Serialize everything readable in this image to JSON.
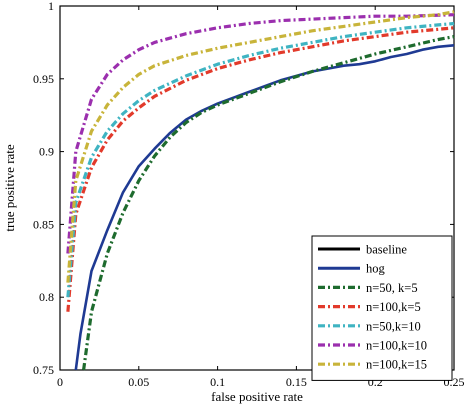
{
  "chart_data": {
    "type": "line",
    "title": "",
    "xlabel": "false positive rate",
    "ylabel": "true positive rate",
    "xlim": [
      0,
      0.25
    ],
    "ylim": [
      0.75,
      1
    ],
    "xticks": [
      0,
      0.05,
      0.1,
      0.15,
      0.2,
      0.25
    ],
    "xtick_labels": [
      "0",
      "0.05",
      "0.1",
      "0.15",
      "0.2",
      "0.25"
    ],
    "yticks": [
      0.75,
      0.8,
      0.85,
      0.9,
      0.95,
      1
    ],
    "ytick_labels": [
      "0.75",
      "0.8",
      "0.85",
      "0.9",
      "0.95",
      "1"
    ],
    "grid": false,
    "legend_position": "bottom-right",
    "series": [
      {
        "name": "baseline",
        "color": "#000000",
        "style": "solid",
        "x": [],
        "y": []
      },
      {
        "name": "hog",
        "color": "#1f3a93",
        "style": "solid",
        "x": [
          0.01,
          0.013,
          0.02,
          0.03,
          0.04,
          0.05,
          0.06,
          0.07,
          0.08,
          0.09,
          0.1,
          0.11,
          0.12,
          0.13,
          0.14,
          0.15,
          0.16,
          0.17,
          0.18,
          0.19,
          0.2,
          0.21,
          0.22,
          0.23,
          0.24,
          0.25
        ],
        "y": [
          0.75,
          0.775,
          0.818,
          0.846,
          0.872,
          0.89,
          0.902,
          0.913,
          0.922,
          0.928,
          0.933,
          0.937,
          0.941,
          0.945,
          0.949,
          0.952,
          0.955,
          0.957,
          0.959,
          0.96,
          0.962,
          0.965,
          0.967,
          0.97,
          0.972,
          0.973
        ]
      },
      {
        "name": "n=50, k=5",
        "color": "#1e6b2e",
        "style": "dashdot",
        "x": [
          0.015,
          0.02,
          0.03,
          0.04,
          0.05,
          0.06,
          0.07,
          0.08,
          0.09,
          0.1,
          0.12,
          0.14,
          0.16,
          0.18,
          0.2,
          0.22,
          0.24,
          0.25
        ],
        "y": [
          0.75,
          0.79,
          0.83,
          0.858,
          0.88,
          0.897,
          0.91,
          0.92,
          0.927,
          0.932,
          0.94,
          0.948,
          0.955,
          0.961,
          0.967,
          0.972,
          0.977,
          0.979
        ]
      },
      {
        "name": "n=100,k=5",
        "color": "#e23a2b",
        "style": "dashdot",
        "x": [
          0.005,
          0.01,
          0.02,
          0.03,
          0.04,
          0.05,
          0.06,
          0.08,
          0.1,
          0.12,
          0.14,
          0.16,
          0.18,
          0.2,
          0.22,
          0.24,
          0.25
        ],
        "y": [
          0.79,
          0.857,
          0.889,
          0.908,
          0.921,
          0.93,
          0.938,
          0.949,
          0.957,
          0.963,
          0.968,
          0.972,
          0.976,
          0.979,
          0.982,
          0.984,
          0.985
        ]
      },
      {
        "name": "n=50,k=10",
        "color": "#3fb4c2",
        "style": "dashdot",
        "x": [
          0.005,
          0.01,
          0.02,
          0.03,
          0.04,
          0.05,
          0.06,
          0.08,
          0.1,
          0.12,
          0.14,
          0.16,
          0.18,
          0.2,
          0.22,
          0.24,
          0.25
        ],
        "y": [
          0.8,
          0.865,
          0.896,
          0.914,
          0.926,
          0.935,
          0.942,
          0.952,
          0.96,
          0.966,
          0.971,
          0.975,
          0.979,
          0.982,
          0.985,
          0.987,
          0.988
        ]
      },
      {
        "name": "n=100,k=10",
        "color": "#9b2fae",
        "style": "dashdot",
        "x": [
          0.005,
          0.01,
          0.02,
          0.03,
          0.04,
          0.05,
          0.06,
          0.08,
          0.1,
          0.12,
          0.14,
          0.16,
          0.18,
          0.2,
          0.22,
          0.25
        ],
        "y": [
          0.83,
          0.9,
          0.936,
          0.953,
          0.963,
          0.97,
          0.975,
          0.981,
          0.985,
          0.988,
          0.99,
          0.991,
          0.992,
          0.993,
          0.993,
          0.994
        ]
      },
      {
        "name": "n=100,k=15",
        "color": "#c8b43a",
        "style": "dashdot",
        "x": [
          0.005,
          0.01,
          0.02,
          0.03,
          0.04,
          0.05,
          0.06,
          0.08,
          0.1,
          0.12,
          0.14,
          0.16,
          0.18,
          0.2,
          0.22,
          0.24,
          0.25
        ],
        "y": [
          0.81,
          0.88,
          0.914,
          0.932,
          0.944,
          0.953,
          0.959,
          0.966,
          0.971,
          0.975,
          0.979,
          0.983,
          0.986,
          0.989,
          0.992,
          0.994,
          0.996
        ]
      }
    ]
  }
}
